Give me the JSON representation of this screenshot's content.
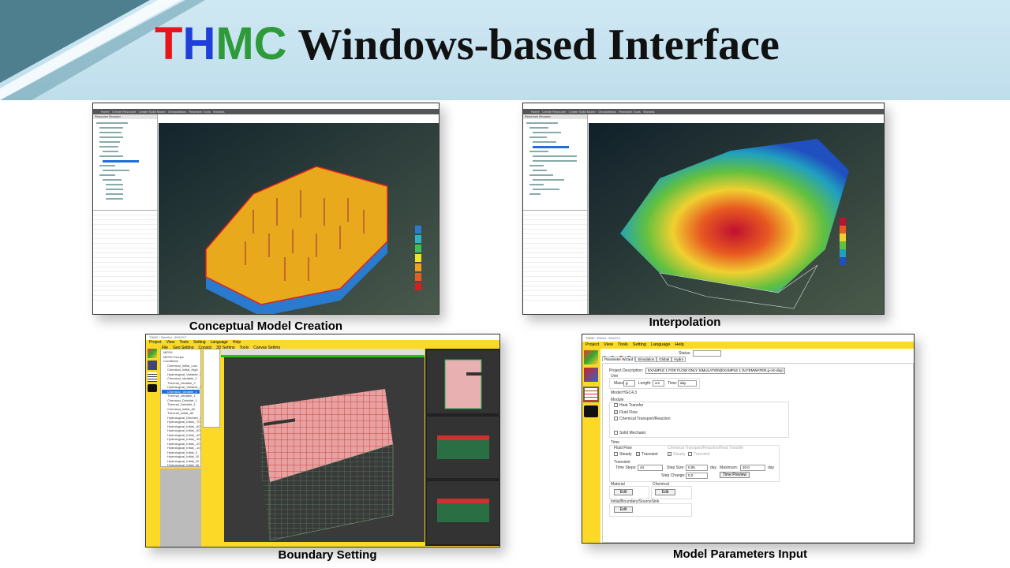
{
  "slide": {
    "title_prefix": [
      "T",
      "H",
      "M",
      "C"
    ],
    "title_prefix_colors": [
      "#e8141b",
      "#1f3fd8",
      "#2e9a3a",
      "#2e9a3a"
    ],
    "title_rest": "Windows-based Interface"
  },
  "captions": {
    "conceptual": "Conceptual Model Creation",
    "interpolation": "Interpolation",
    "boundary": "Boundary Setting",
    "parameters": "Model Parameters Input"
  },
  "win_conceptual": {
    "menu": [
      "Home",
      "Create Resource",
      "Create Solid Model",
      "Geostatistics",
      "Research Tools",
      "Wizards"
    ],
    "tree_header": "Resource Browser"
  },
  "win_interp": {
    "menu": [
      "Home",
      "Create Resource",
      "Create Solid Model",
      "Geostatistics",
      "Research Tools",
      "Wizards"
    ],
    "tree_header": "Resource Browser"
  },
  "win_boundary": {
    "title": "THMC / GeoGui : 20XXYY",
    "menu": [
      "Project",
      "View",
      "Tools",
      "Setting",
      "Language",
      "Help"
    ],
    "submenu": [
      "File",
      "Geo Setting",
      "Consist",
      "3D Setting",
      "Tools",
      "Canvas Setting"
    ],
    "tree": [
      "MESH",
      "MESH Groups",
      "Conditions",
      "Chemical_Initial_Low",
      "Chemical_Initial_High",
      "Hydrological_Variable_1",
      "Chemical_Variable_2",
      "Thermal_Variable_2",
      "Hydrological_Variable_2",
      "Chemical_Variable_1",
      "Thermal_Variable_1",
      "Chemical_Dirichlet_1",
      "Thermal_Dirichlet_1",
      "Chemical_Initial_All",
      "Thermal_Initial_All",
      "Hydrological_Dirichlet_1",
      "Hydrological_Initial_-70",
      "Hydrological_Initial_-60",
      "Hydrological_Initial_-50",
      "Hydrological_Initial_-40",
      "Hydrological_Initial_-30",
      "Hydrological_Initial_-20",
      "Hydrological_Initial_-10",
      "Hydrological_Initial_0",
      "Hydrological_Initial_10",
      "Hydrological_Initial_20",
      "Hydrological_Initial_30",
      "Others"
    ],
    "selected_index": 9
  },
  "win_params": {
    "title": "THMC / PtGUI : 20XXYY",
    "menu": [
      "Project",
      "View",
      "Tools",
      "Setting",
      "Language",
      "Help"
    ],
    "status_label": "Status:",
    "status_value": "",
    "tabs": [
      "Parameter Wizard",
      "Simulation",
      "Global",
      "Hydro"
    ],
    "project_description_label": "Project Description:",
    "project_description": "EXAMPLE 1 FOR FLOW ONLY SIMULATION(EXAMPLE 1 IN FEMWATER,g-cm-day)",
    "unit_label": "Unit",
    "mass_label": "Mass:",
    "mass": "g",
    "length_label": "Length:",
    "length": "cm",
    "time_label": "Time:",
    "time": "day",
    "model_label": "Model:HGC4.3",
    "module_label": "Module",
    "modules": [
      {
        "label": "Heat Transfer",
        "checked": false
      },
      {
        "label": "Fluid Flow",
        "checked": true
      },
      {
        "label": "Chemical Transport/Reaction",
        "checked": false
      },
      {
        "label": "Solid Mechanic",
        "checked": false
      }
    ],
    "time_group": "Time",
    "fluid_flow": "Fluid Flow",
    "steady": "Steady",
    "transient": "Transient",
    "fluid_steady": false,
    "fluid_transient": true,
    "ctr_group": "Chemical Transport/Reaction/Heat Transfer",
    "ctr_steady": true,
    "ctr_transient": false,
    "transient_group": "Transient",
    "time_steps_label": "Time Steps:",
    "time_steps": "44",
    "step_size_label": "Step Size:",
    "step_size": "0.05",
    "day": "day",
    "maximum_label": "Maximum:",
    "maximum": "20.0",
    "step_change_label": "Step Change:",
    "step_change": "0.2",
    "time_preview": "Time Preview",
    "material_label": "Material",
    "chemical_label": "Chemical",
    "ibs_label": "Initial/Boundary/SourceSink",
    "edit": "Edit"
  },
  "colors": {
    "yellow": "#fcd926",
    "terrain": "#e8a91c",
    "dark_bg": "#3a3a3a"
  }
}
